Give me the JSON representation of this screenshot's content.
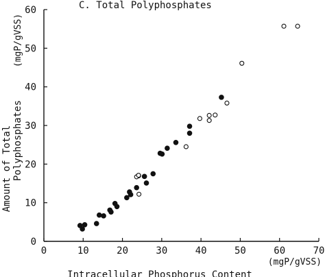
{
  "chart_data": {
    "type": "scatter",
    "title": "C. Total Polyphosphates",
    "ylabel_lines": [
      "Amount of Total",
      "Polyphosphates"
    ],
    "yunit": "(mgP/gVSS)",
    "xunit": "(mgP/gVSS)",
    "xlabel": "Intracellular Phosphorus Content",
    "xlim": [
      0,
      70
    ],
    "ylim": [
      0,
      60
    ],
    "xticks": [
      0,
      10,
      20,
      30,
      40,
      50,
      60,
      70
    ],
    "yticks": [
      0,
      10,
      20,
      30,
      40,
      50,
      60
    ],
    "xtick_labels": [
      "0",
      "10",
      "20",
      "30",
      "40",
      "50",
      "60",
      "70"
    ],
    "ytick_labels": [
      "0",
      "10",
      "20",
      "30",
      "40",
      "50",
      "60"
    ],
    "grid": false,
    "colors": {
      "ink": "#111111",
      "background": "#ffffff"
    },
    "series": [
      {
        "marker": "filled",
        "points": [
          [
            9.2,
            4.1
          ],
          [
            9.8,
            3.2
          ],
          [
            10.4,
            4.3
          ],
          [
            13.4,
            4.6
          ],
          [
            14.1,
            6.8
          ],
          [
            15.2,
            6.6
          ],
          [
            16.8,
            8.1
          ],
          [
            17.1,
            7.6
          ],
          [
            18.1,
            9.8
          ],
          [
            18.6,
            9.0
          ],
          [
            21.1,
            11.3
          ],
          [
            21.8,
            12.8
          ],
          [
            22.1,
            12.1
          ],
          [
            23.6,
            13.9
          ],
          [
            24.1,
            17.0
          ],
          [
            25.6,
            16.8
          ],
          [
            26.1,
            15.1
          ],
          [
            27.8,
            17.5
          ],
          [
            29.6,
            22.8
          ],
          [
            30.1,
            22.6
          ],
          [
            31.4,
            24.1
          ],
          [
            33.6,
            25.6
          ],
          [
            37.1,
            29.8
          ],
          [
            37.1,
            28.0
          ],
          [
            45.2,
            37.3
          ]
        ]
      },
      {
        "marker": "open",
        "points": [
          [
            23.6,
            16.7
          ],
          [
            24.1,
            17.1
          ],
          [
            24.2,
            12.2
          ],
          [
            36.2,
            24.5
          ],
          [
            39.7,
            31.8
          ],
          [
            42.1,
            31.3
          ],
          [
            42.1,
            32.6
          ],
          [
            43.6,
            32.7
          ],
          [
            46.6,
            35.8
          ],
          [
            50.4,
            46.1
          ],
          [
            61.1,
            55.7
          ],
          [
            64.6,
            55.7
          ]
        ]
      }
    ]
  }
}
